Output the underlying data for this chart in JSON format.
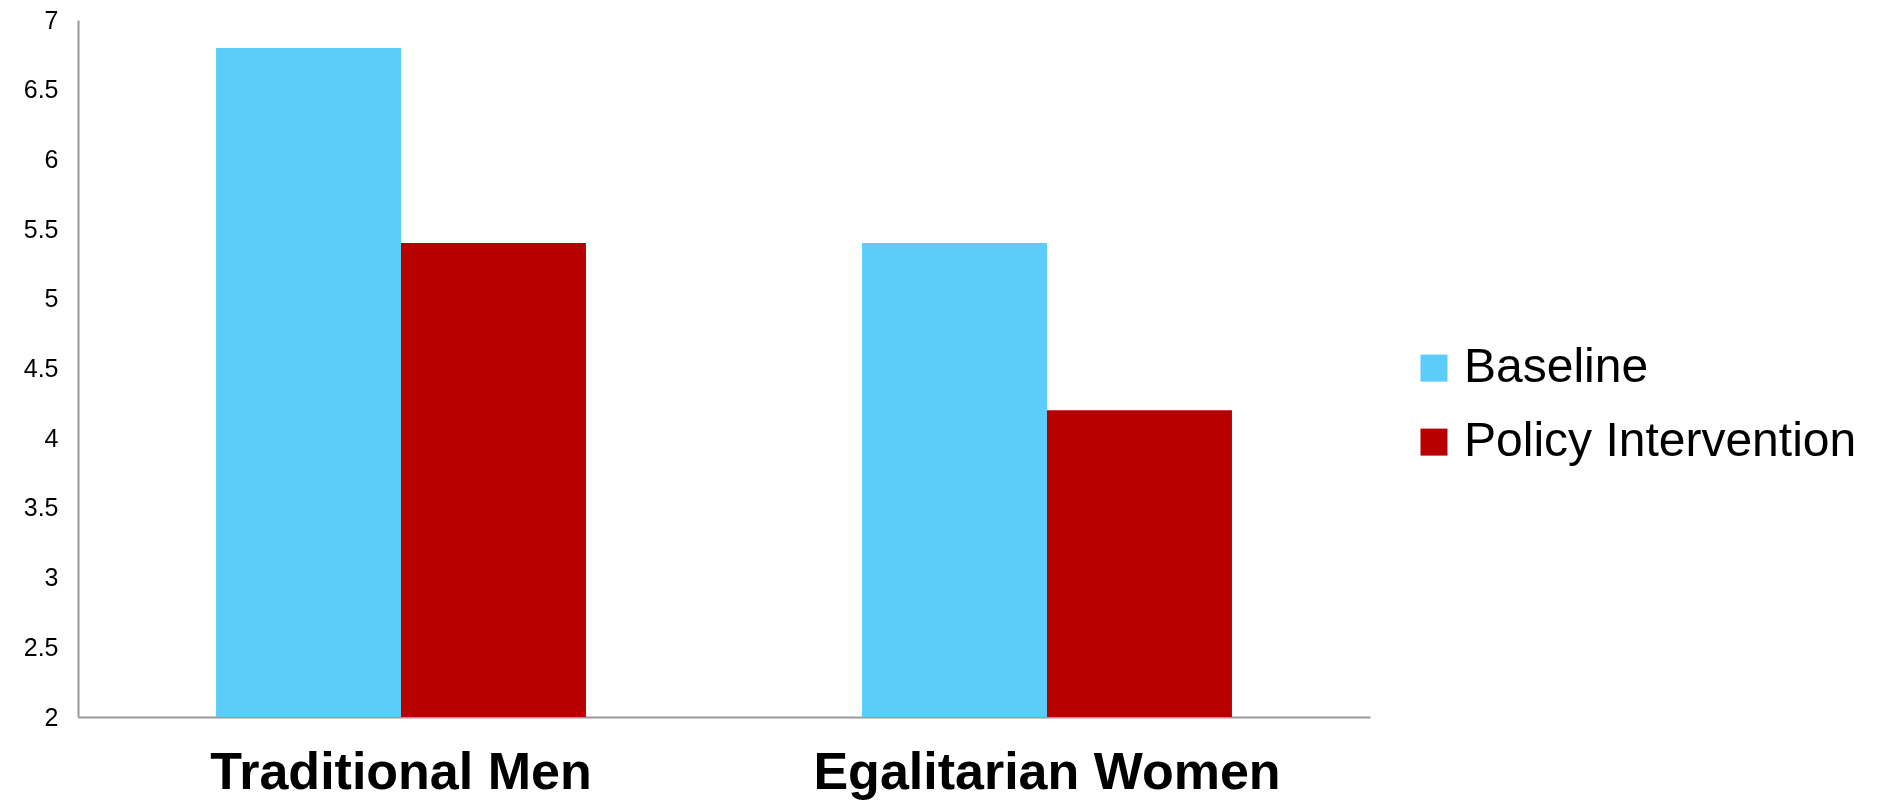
{
  "chart_data": {
    "type": "bar",
    "categories": [
      "Traditional Men",
      "Egalitarian Women"
    ],
    "series": [
      {
        "name": "Baseline",
        "color": "#5bcdf8",
        "values": [
          6.8,
          5.4
        ]
      },
      {
        "name": "Policy Intervention",
        "color": "#b80000",
        "values": [
          5.4,
          4.2
        ]
      }
    ],
    "ylim": [
      2,
      7
    ],
    "yticks": [
      2,
      2.5,
      3,
      3.5,
      4,
      4.5,
      5,
      5.5,
      6,
      6.5,
      7
    ],
    "grid": false,
    "legend": "right"
  }
}
